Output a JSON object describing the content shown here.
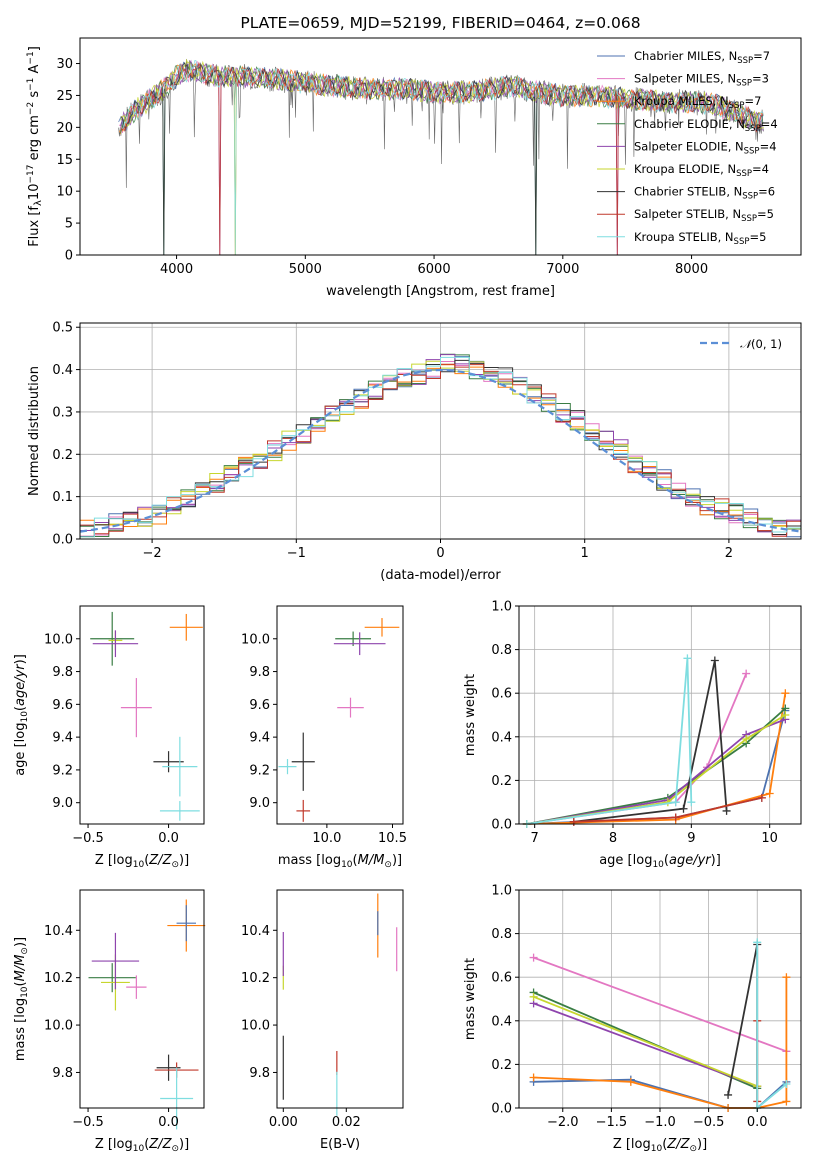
{
  "chart_data": [
    {
      "type": "line",
      "title": "PLATE=0659, MJD=52199, FIBERID=0464, z=0.068",
      "xlabel": "wavelength [Angstrom, rest frame]",
      "ylabel": "Flux [f_λ 10^-17 erg cm^-2 s^-1 A^-1]",
      "xlim": [
        3250,
        8850
      ],
      "ylim": [
        0,
        34
      ],
      "xticks": [
        "4000",
        "5000",
        "6000",
        "7000",
        "8000"
      ],
      "yticks": [
        "0",
        "5",
        "10",
        "15",
        "20",
        "25",
        "30"
      ],
      "grid": false,
      "legend_position": "top-right",
      "series": [
        {
          "name": "Chabrier MILES, N_SSP=7",
          "color": "#4c72b0"
        },
        {
          "name": "Salpeter MILES, N_SSP=3",
          "color": "#e377c2"
        },
        {
          "name": "Kroupa MILES, N_SSP=7",
          "color": "#ff7f0e"
        },
        {
          "name": "Chabrier ELODIE, N_SSP=4",
          "color": "#3a7d44"
        },
        {
          "name": "Salpeter ELODIE, N_SSP=4",
          "color": "#8e44ad"
        },
        {
          "name": "Kroupa ELODIE, N_SSP=4",
          "color": "#c7d62e"
        },
        {
          "name": "Chabrier STELIB, N_SSP=6",
          "color": "#333333"
        },
        {
          "name": "Salpeter STELIB, N_SSP=5",
          "color": "#c0392b"
        },
        {
          "name": "Kroupa STELIB, N_SSP=5",
          "color": "#7fdde0"
        }
      ],
      "continuum": {
        "x": [
          3550,
          3700,
          3900,
          4000,
          4100,
          4300,
          4500,
          4800,
          5000,
          5200,
          5500,
          5800,
          6000,
          6300,
          6600,
          6800,
          7000,
          7200,
          7500,
          7800,
          8000,
          8200,
          8500
        ],
        "y": [
          20,
          23,
          26,
          28,
          29,
          28,
          28,
          27.5,
          27,
          26.5,
          26,
          26,
          25.5,
          25.5,
          26.5,
          25.5,
          25,
          25,
          24.5,
          24,
          24,
          23.5,
          21
        ]
      }
    },
    {
      "type": "line",
      "xlabel": "(data-model)/error",
      "ylabel": "Normed distribution",
      "xlim": [
        -2.5,
        2.5
      ],
      "ylim": [
        0,
        0.51
      ],
      "xticks": [
        "−2",
        "−1",
        "0",
        "1",
        "2"
      ],
      "yticks": [
        "0.0",
        "0.1",
        "0.2",
        "0.3",
        "0.4",
        "0.5"
      ],
      "grid": true,
      "legend_position": "top-right",
      "legend": [
        "N(0,1)"
      ],
      "histogram_bins": [
        -2.5,
        -2.4,
        -2.3,
        -2.2,
        -2.1,
        -2.0,
        -1.9,
        -1.8,
        -1.7,
        -1.6,
        -1.5,
        -1.4,
        -1.3,
        -1.2,
        -1.1,
        -1.0,
        -0.9,
        -0.8,
        -0.7,
        -0.6,
        -0.5,
        -0.4,
        -0.3,
        -0.2,
        -0.1,
        0.0,
        0.1,
        0.2,
        0.3,
        0.4,
        0.5,
        0.6,
        0.7,
        0.8,
        0.9,
        1.0,
        1.1,
        1.2,
        1.3,
        1.4,
        1.5,
        1.6,
        1.7,
        1.8,
        1.9,
        2.0,
        2.1,
        2.2,
        2.3,
        2.4,
        2.5
      ],
      "histogram_density": [
        0.02,
        0.03,
        0.04,
        0.04,
        0.05,
        0.06,
        0.08,
        0.1,
        0.11,
        0.13,
        0.15,
        0.17,
        0.19,
        0.21,
        0.23,
        0.25,
        0.27,
        0.29,
        0.31,
        0.33,
        0.35,
        0.37,
        0.38,
        0.39,
        0.4,
        0.42,
        0.41,
        0.4,
        0.39,
        0.38,
        0.36,
        0.34,
        0.32,
        0.3,
        0.28,
        0.25,
        0.23,
        0.21,
        0.18,
        0.16,
        0.14,
        0.12,
        0.1,
        0.08,
        0.07,
        0.06,
        0.05,
        0.04,
        0.03,
        0.03
      ]
    },
    {
      "type": "scatter",
      "xlabel": "Z [log10(Z/Z☉)]",
      "ylabel": "age [log10(age/yr)]",
      "xlim": [
        -0.55,
        0.22
      ],
      "ylim": [
        8.87,
        10.2
      ],
      "xticks": [
        "−0.5",
        "0.0"
      ],
      "yticks": [
        "9.0",
        "9.2",
        "9.4",
        "9.6",
        "9.8",
        "10.0"
      ],
      "points": [
        {
          "x": 0.11,
          "y": 10.07,
          "color": "#ff7f0e"
        },
        {
          "x": -0.35,
          "y": 10.0,
          "color": "#3a7d44"
        },
        {
          "x": -0.33,
          "y": 9.99,
          "color": "#c7d62e"
        },
        {
          "x": -0.33,
          "y": 9.97,
          "color": "#8e44ad"
        },
        {
          "x": -0.2,
          "y": 9.58,
          "color": "#e377c2"
        },
        {
          "x": 0.0,
          "y": 9.25,
          "color": "#333333"
        },
        {
          "x": 0.07,
          "y": 9.22,
          "color": "#7fdde0"
        },
        {
          "x": 0.07,
          "y": 8.95,
          "color": "#7fdde0"
        }
      ]
    },
    {
      "type": "scatter",
      "xlabel": "mass [log10(M/M☉)]",
      "ylabel": "",
      "xlim": [
        9.62,
        10.58
      ],
      "ylim": [
        8.87,
        10.2
      ],
      "xticks": [
        "10.0",
        "10.5"
      ],
      "yticks": [
        "9.0",
        "9.2",
        "9.4",
        "9.6",
        "9.8",
        "10.0"
      ],
      "points": [
        {
          "x": 10.42,
          "y": 10.07,
          "color": "#ff7f0e"
        },
        {
          "x": 10.2,
          "y": 10.0,
          "color": "#3a7d44"
        },
        {
          "x": 10.25,
          "y": 9.97,
          "color": "#8e44ad"
        },
        {
          "x": 10.18,
          "y": 9.58,
          "color": "#e377c2"
        },
        {
          "x": 9.82,
          "y": 9.25,
          "color": "#333333"
        },
        {
          "x": 9.82,
          "y": 8.95,
          "color": "#c0392b"
        },
        {
          "x": 9.7,
          "y": 9.22,
          "color": "#7fdde0"
        }
      ]
    },
    {
      "type": "line",
      "xlabel": "age [log10(age/yr)]",
      "ylabel": "mass weight",
      "xlim": [
        6.8,
        10.4
      ],
      "ylim": [
        0,
        1.0
      ],
      "xticks": [
        "7",
        "8",
        "9",
        "10"
      ],
      "yticks": [
        "0.0",
        "0.2",
        "0.4",
        "0.6",
        "0.8",
        "1.0"
      ],
      "grid": true,
      "series": [
        {
          "color": "#4c72b0",
          "x": [
            6.9,
            8.8,
            9.9,
            10.2
          ],
          "y": [
            0.0,
            0.03,
            0.12,
            0.52
          ]
        },
        {
          "color": "#e377c2",
          "x": [
            6.9,
            8.8,
            9.2,
            9.7
          ],
          "y": [
            0.0,
            0.1,
            0.26,
            0.69
          ]
        },
        {
          "color": "#ff7f0e",
          "x": [
            6.9,
            8.8,
            10.0,
            10.2
          ],
          "y": [
            0.0,
            0.02,
            0.14,
            0.6
          ]
        },
        {
          "color": "#3a7d44",
          "x": [
            6.9,
            8.7,
            9.7,
            10.2
          ],
          "y": [
            0.0,
            0.12,
            0.37,
            0.53
          ]
        },
        {
          "color": "#8e44ad",
          "x": [
            6.9,
            8.7,
            9.7,
            10.2
          ],
          "y": [
            0.0,
            0.11,
            0.41,
            0.48
          ]
        },
        {
          "color": "#c7d62e",
          "x": [
            6.9,
            8.7,
            9.7,
            10.2
          ],
          "y": [
            0.0,
            0.1,
            0.39,
            0.5
          ]
        },
        {
          "color": "#333333",
          "x": [
            7.5,
            8.9,
            9.3,
            9.45
          ],
          "y": [
            0.01,
            0.07,
            0.75,
            0.06
          ]
        },
        {
          "color": "#c0392b",
          "x": [
            7.5,
            8.8,
            9.9
          ],
          "y": [
            0.01,
            0.03,
            0.12
          ]
        },
        {
          "color": "#7fdde0",
          "x": [
            6.9,
            8.8,
            8.95,
            9.0
          ],
          "y": [
            0.0,
            0.1,
            0.76,
            0.1
          ]
        }
      ]
    },
    {
      "type": "scatter",
      "xlabel": "Z [log10(Z/Z☉)]",
      "ylabel": "mass [log10(M/M☉)]",
      "xlim": [
        -0.55,
        0.22
      ],
      "ylim": [
        9.65,
        10.57
      ],
      "xticks": [
        "−0.5",
        "0.0"
      ],
      "yticks": [
        "9.8",
        "10.0",
        "10.2",
        "10.4"
      ],
      "points": [
        {
          "x": 0.11,
          "y": 10.42,
          "color": "#ff7f0e"
        },
        {
          "x": 0.11,
          "y": 10.43,
          "color": "#4c72b0"
        },
        {
          "x": -0.35,
          "y": 10.2,
          "color": "#3a7d44"
        },
        {
          "x": -0.33,
          "y": 10.18,
          "color": "#c7d62e"
        },
        {
          "x": -0.33,
          "y": 10.27,
          "color": "#8e44ad"
        },
        {
          "x": -0.2,
          "y": 10.16,
          "color": "#e377c2"
        },
        {
          "x": 0.0,
          "y": 9.82,
          "color": "#333333"
        },
        {
          "x": 0.05,
          "y": 9.81,
          "color": "#c0392b"
        },
        {
          "x": 0.05,
          "y": 9.69,
          "color": "#7fdde0"
        }
      ]
    },
    {
      "type": "scatter",
      "xlabel": "E(B-V)",
      "ylabel": "",
      "xlim": [
        -0.002,
        0.038
      ],
      "ylim": [
        9.65,
        10.57
      ],
      "xticks": [
        "0.00",
        "0.02"
      ],
      "yticks": [
        "9.8",
        "10.0",
        "10.2",
        "10.4"
      ],
      "points": [
        {
          "x": 0.0,
          "y": 10.2,
          "color": "#c7d62e"
        },
        {
          "x": 0.0,
          "y": 10.3,
          "color": "#8e44ad"
        },
        {
          "x": 0.0,
          "y": 9.82,
          "color": "#333333"
        },
        {
          "x": 0.017,
          "y": 9.84,
          "color": "#c0392b"
        },
        {
          "x": 0.017,
          "y": 9.71,
          "color": "#7fdde0"
        },
        {
          "x": 0.03,
          "y": 10.42,
          "color": "#ff7f0e"
        },
        {
          "x": 0.03,
          "y": 10.43,
          "color": "#4c72b0"
        },
        {
          "x": 0.036,
          "y": 10.32,
          "color": "#e377c2"
        }
      ]
    },
    {
      "type": "line",
      "xlabel": "Z [log10(Z/Z☉)]",
      "ylabel": "mass weight",
      "xlim": [
        -2.45,
        0.45
      ],
      "ylim": [
        0,
        1.0
      ],
      "xticks": [
        "−2.0",
        "−1.5",
        "−1.0",
        "−0.5",
        "0.0"
      ],
      "yticks": [
        "0.0",
        "0.2",
        "0.4",
        "0.6",
        "0.8",
        "1.0"
      ],
      "grid": true,
      "series": [
        {
          "color": "#4c72b0",
          "x": [
            -2.3,
            -1.3,
            -0.3,
            0.0,
            0.3
          ],
          "y": [
            0.12,
            0.13,
            0.0,
            0.0,
            0.12
          ]
        },
        {
          "color": "#e377c2",
          "x": [
            -2.3,
            0.3
          ],
          "y": [
            0.69,
            0.26
          ]
        },
        {
          "color": "#ff7f0e",
          "x": [
            -2.3,
            -1.3,
            -0.3,
            0.0,
            0.3,
            0.3
          ],
          "y": [
            0.14,
            0.12,
            0.0,
            0.0,
            0.03,
            0.6
          ]
        },
        {
          "color": "#3a7d44",
          "x": [
            -2.3,
            0.0
          ],
          "y": [
            0.53,
            0.09
          ]
        },
        {
          "color": "#8e44ad",
          "x": [
            -2.3,
            0.0
          ],
          "y": [
            0.48,
            0.1
          ]
        },
        {
          "color": "#c7d62e",
          "x": [
            -2.3,
            0.0
          ],
          "y": [
            0.51,
            0.1
          ]
        },
        {
          "color": "#333333",
          "x": [
            -0.3,
            0.0,
            0.0
          ],
          "y": [
            0.06,
            0.75,
            0.0
          ]
        },
        {
          "color": "#c0392b",
          "x": [
            0.0,
            0.0
          ],
          "y": [
            0.4,
            0.03
          ]
        },
        {
          "color": "#7fdde0",
          "x": [
            0.0,
            0.0,
            0.3
          ],
          "y": [
            0.76,
            0.0,
            0.11
          ]
        }
      ]
    }
  ]
}
